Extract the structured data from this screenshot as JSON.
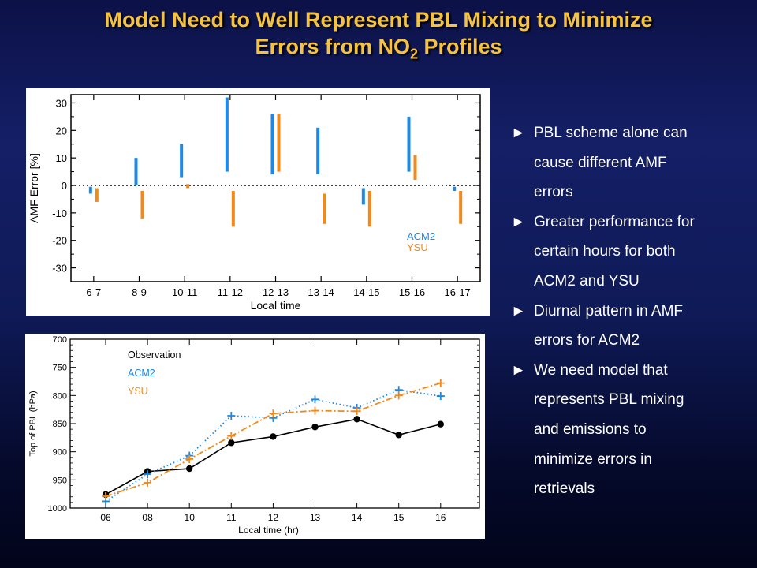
{
  "title": {
    "line1": "Model Need to Well Represent PBL Mixing to Minimize",
    "line2_pre": "Errors from NO",
    "line2_sub": "2",
    "line2_post": " Profiles"
  },
  "bullets": [
    {
      "marker": "►",
      "lines": [
        "PBL scheme alone can",
        "cause different AMF",
        "errors"
      ]
    },
    {
      "marker": "►",
      "lines": [
        "Greater performance for",
        "certain hours for both",
        "ACM2 and YSU"
      ]
    },
    {
      "marker": "►",
      "lines": [
        "Diurnal pattern in AMF",
        "errors for ACM2"
      ]
    },
    {
      "marker": "►",
      "lines": [
        "We need model that",
        "represents PBL mixing",
        "and emissions to",
        "minimize errors in",
        "retrievals"
      ]
    }
  ],
  "colors": {
    "acm2": "#1e88e5",
    "ysu": "#f08a1c",
    "observation": "#000000",
    "title": "#f5c242"
  },
  "chart_data": [
    {
      "type": "bar",
      "subtype": "floating-range",
      "title": "",
      "xlabel": "Local time",
      "ylabel": "AMF Error [%]",
      "categories": [
        "6-7",
        "8-9",
        "10-11",
        "11-12",
        "12-13",
        "13-14",
        "14-15",
        "15-16",
        "16-17"
      ],
      "ylim": [
        -35,
        33
      ],
      "yticks": [
        -30,
        -20,
        -10,
        0,
        10,
        20,
        30
      ],
      "zero_line": "dotted",
      "legend": "bottom-right",
      "series": [
        {
          "name": "ACM2",
          "color": "#1e88e5",
          "ranges": [
            [
              -3,
              -0.5
            ],
            [
              0,
              10
            ],
            [
              3,
              15
            ],
            [
              5,
              32
            ],
            [
              4,
              26
            ],
            [
              4,
              21
            ],
            [
              -7,
              -1
            ],
            [
              5,
              25
            ],
            [
              -2,
              -0.5
            ]
          ]
        },
        {
          "name": "YSU",
          "color": "#f08a1c",
          "ranges": [
            [
              -6,
              -1
            ],
            [
              -12,
              -2
            ],
            [
              -1,
              0.5
            ],
            [
              -15,
              -2
            ],
            [
              5,
              26
            ],
            [
              -14,
              -3
            ],
            [
              -15,
              -2
            ],
            [
              2,
              11
            ],
            [
              -14,
              -2
            ]
          ]
        }
      ]
    },
    {
      "type": "line",
      "title": "",
      "xlabel": "Local time (hr)",
      "ylabel": "Top of PBL (hPa)",
      "x": [
        "06",
        "08",
        "10",
        "11",
        "12",
        "13",
        "14",
        "15",
        "16"
      ],
      "ylim": [
        1000,
        700
      ],
      "y_inverted": true,
      "yticks": [
        700,
        750,
        800,
        850,
        900,
        950,
        1000
      ],
      "legend": "top-left",
      "series": [
        {
          "name": "Observation",
          "color": "#000000",
          "style": "solid",
          "marker": "circle",
          "values": [
            976,
            935,
            930,
            884,
            873,
            856,
            842,
            870,
            851
          ]
        },
        {
          "name": "ACM2",
          "color": "#1e88e5",
          "style": "dotted",
          "marker": "plus",
          "values": [
            988,
            940,
            907,
            836,
            840,
            807,
            822,
            790,
            801
          ]
        },
        {
          "name": "YSU",
          "color": "#f08a1c",
          "style": "dashdot",
          "marker": "plus",
          "values": [
            979,
            955,
            913,
            872,
            832,
            827,
            828,
            800,
            778
          ]
        }
      ]
    }
  ]
}
